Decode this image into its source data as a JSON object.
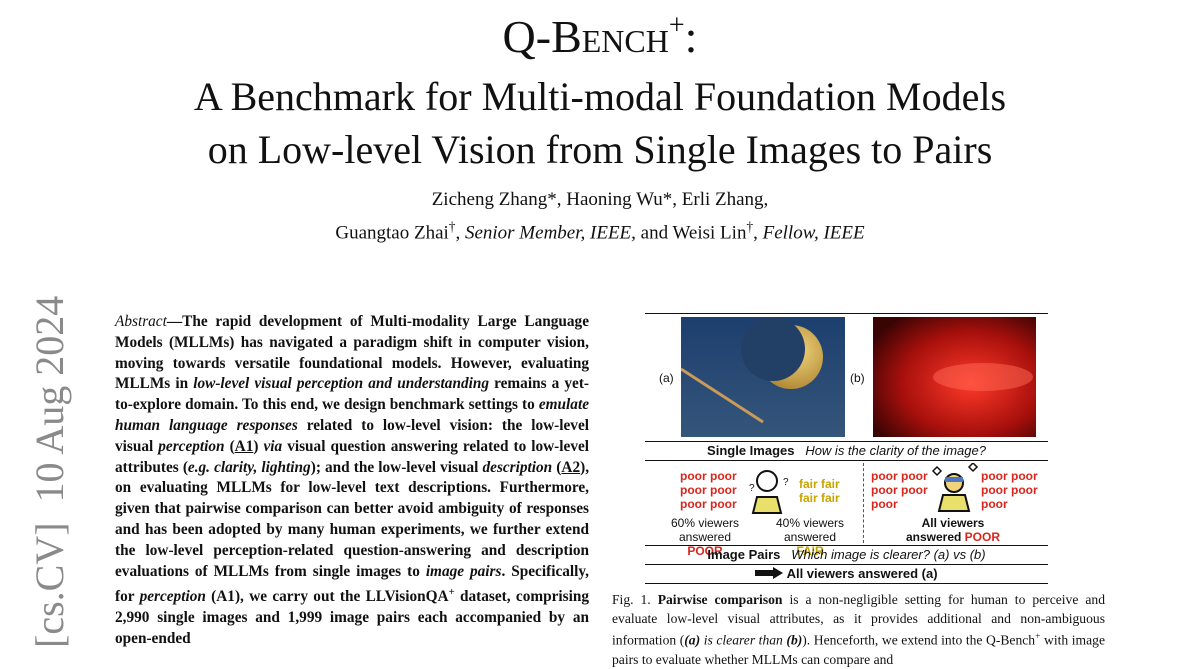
{
  "header": {
    "title": {
      "name": "Q-Bench",
      "sup": "+",
      "colon": ":"
    },
    "subtitle": [
      "A Benchmark for Multi-modal Foundation Models",
      "on Low-level Vision from Single Images to Pairs"
    ],
    "authors": [
      [
        {
          "text": "Zicheng Zhang*, Haoning Wu*, Erli Zhang,",
          "style": "n"
        }
      ],
      [
        {
          "text": "Guangtao Zhai",
          "style": "n"
        },
        {
          "text": "†",
          "style": "sup"
        },
        {
          "text": ", ",
          "style": "n"
        },
        {
          "text": "Senior Member, IEEE,",
          "style": "i"
        },
        {
          "text": " and Weisi Lin",
          "style": "n"
        },
        {
          "text": "†",
          "style": "sup"
        },
        {
          "text": ", ",
          "style": "n"
        },
        {
          "text": "Fellow, IEEE",
          "style": "i"
        }
      ]
    ]
  },
  "stamp": "[cs.CV]  10 Aug 2024",
  "abstract": [
    {
      "text": "Abstract",
      "style": "i"
    },
    {
      "text": "—The rapid development of Multi-modality Large Language Models (MLLMs) has navigated a paradigm shift in computer vision, moving towards versatile foundational models. However, evaluating MLLMs in ",
      "style": "b"
    },
    {
      "text": "low-level visual perception and understanding",
      "style": "bi"
    },
    {
      "text": " remains a yet-to-explore domain. To this end, we design benchmark settings to ",
      "style": "b"
    },
    {
      "text": "emulate human language responses",
      "style": "bi"
    },
    {
      "text": " related to low-level vision: the low-level visual ",
      "style": "b"
    },
    {
      "text": "perception",
      "style": "bi"
    },
    {
      "text": " (",
      "style": "b"
    },
    {
      "text": "A1",
      "style": "bu"
    },
    {
      "text": ") ",
      "style": "b"
    },
    {
      "text": "via",
      "style": "bi"
    },
    {
      "text": " visual question answering related to low-level attributes (",
      "style": "b"
    },
    {
      "text": "e.g. clarity, lighting",
      "style": "bi"
    },
    {
      "text": "); and the low-level visual ",
      "style": "b"
    },
    {
      "text": "description",
      "style": "bi"
    },
    {
      "text": " (",
      "style": "b"
    },
    {
      "text": "A2",
      "style": "bu"
    },
    {
      "text": "), on evaluating MLLMs for low-level text descriptions. Furthermore, given that pairwise comparison can better avoid ambiguity of responses and has been adopted by many human experiments, we further extend the low-level perception-related question-answering and description evaluations of MLLMs from single images to ",
      "style": "b"
    },
    {
      "text": "image pairs",
      "style": "bi"
    },
    {
      "text": ". Specifically, for ",
      "style": "b"
    },
    {
      "text": "perception",
      "style": "bi"
    },
    {
      "text": " (A1), we carry out the LLVisionQA",
      "style": "b"
    },
    {
      "text": "+",
      "style": "bsup"
    },
    {
      "text": " dataset, comprising 2,990 single images and 1,999 image pairs each accompanied by an open-ended",
      "style": "b"
    }
  ],
  "figure": {
    "label_a": "(a)",
    "label_b": "(b)",
    "single_title": "Single Images",
    "single_question": "How is the clarity of the image?",
    "left_poor": [
      "poor poor",
      "poor poor",
      "poor poor"
    ],
    "left_fair": [
      "fair fair",
      "fair fair"
    ],
    "left_poor_stat": [
      "60% viewers",
      "answered ",
      "POOR"
    ],
    "left_fair_stat": [
      "40% viewers",
      "answered ",
      "FAIR"
    ],
    "right_poor_a": [
      "poor poor",
      "poor poor",
      "poor"
    ],
    "right_poor_b": [
      "poor poor",
      "poor poor",
      "poor"
    ],
    "right_stat": [
      "All viewers",
      "answered ",
      "POOR"
    ],
    "pair_title": "Image Pairs",
    "pair_question": "Which image is clearer? (a) vs (b)",
    "pair_answer": "All viewers answered (a)"
  },
  "caption": [
    {
      "text": "Fig. 1.  ",
      "style": "n"
    },
    {
      "text": "Pairwise comparison",
      "style": "b"
    },
    {
      "text": " is a non-negligible setting for human to perceive and evaluate low-level visual attributes, as it provides additional and non-ambiguous information (",
      "style": "n"
    },
    {
      "text": "(a)",
      "style": "bi"
    },
    {
      "text": " is clearer than ",
      "style": "i"
    },
    {
      "text": "(b)",
      "style": "bi"
    },
    {
      "text": "). Henceforth, we extend into the Q-Bench",
      "style": "n"
    },
    {
      "text": "+",
      "style": "sup"
    },
    {
      "text": " with image pairs to evaluate whether MLLMs can compare and",
      "style": "n"
    }
  ]
}
